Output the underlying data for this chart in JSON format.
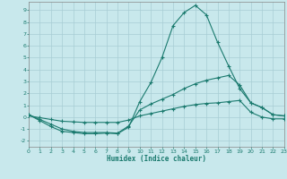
{
  "xlabel": "Humidex (Indice chaleur)",
  "background_color": "#c8e8ec",
  "grid_color": "#a8cdd4",
  "line_color": "#1a7a6e",
  "xlim": [
    0,
    23
  ],
  "ylim": [
    -2.5,
    9.7
  ],
  "xticks": [
    0,
    1,
    2,
    3,
    4,
    5,
    6,
    7,
    8,
    9,
    10,
    11,
    12,
    13,
    14,
    15,
    16,
    17,
    18,
    19,
    20,
    21,
    22,
    23
  ],
  "yticks": [
    -2,
    -1,
    0,
    1,
    2,
    3,
    4,
    5,
    6,
    7,
    8,
    9
  ],
  "series1_y": [
    0.2,
    -0.3,
    -0.8,
    -1.2,
    -1.3,
    -1.4,
    -1.4,
    -1.35,
    -1.4,
    -0.85,
    1.3,
    2.9,
    5.0,
    7.7,
    8.8,
    9.4,
    8.6,
    6.3,
    4.3,
    2.4,
    1.2,
    0.8,
    0.2,
    0.1
  ],
  "series2_y": [
    0.2,
    -0.2,
    -0.6,
    -1.0,
    -1.2,
    -1.3,
    -1.3,
    -1.3,
    -1.35,
    -0.75,
    0.6,
    1.1,
    1.5,
    1.9,
    2.4,
    2.8,
    3.1,
    3.3,
    3.5,
    2.7,
    1.2,
    0.8,
    0.2,
    0.1
  ],
  "series3_y": [
    0.1,
    -0.05,
    -0.2,
    -0.35,
    -0.4,
    -0.45,
    -0.45,
    -0.45,
    -0.45,
    -0.25,
    0.1,
    0.3,
    0.5,
    0.7,
    0.9,
    1.05,
    1.15,
    1.2,
    1.3,
    1.4,
    0.4,
    0.0,
    -0.15,
    -0.15
  ]
}
